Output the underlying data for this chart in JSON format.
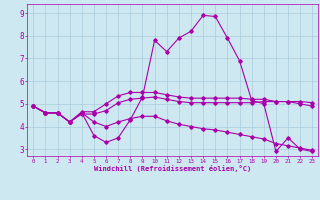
{
  "xlabel": "Windchill (Refroidissement éolien,°C)",
  "background_color": "#cde8f0",
  "grid_color": "#aaccdd",
  "line_color": "#aa00aa",
  "xlim": [
    -0.5,
    23.5
  ],
  "ylim": [
    2.7,
    9.4
  ],
  "yticks": [
    3,
    4,
    5,
    6,
    7,
    8,
    9
  ],
  "xticks": [
    0,
    1,
    2,
    3,
    4,
    5,
    6,
    7,
    8,
    9,
    10,
    11,
    12,
    13,
    14,
    15,
    16,
    17,
    18,
    19,
    20,
    21,
    22,
    23
  ],
  "lines": [
    {
      "x": [
        0,
        1,
        2,
        3,
        4,
        5,
        6,
        7,
        8,
        9,
        10,
        11,
        12,
        13,
        14,
        15,
        16,
        17,
        18,
        19,
        20,
        21,
        22,
        23
      ],
      "y": [
        4.9,
        4.6,
        4.6,
        4.2,
        4.6,
        3.6,
        3.3,
        3.5,
        4.3,
        5.3,
        7.8,
        7.3,
        7.9,
        8.2,
        8.9,
        8.85,
        7.9,
        6.9,
        5.15,
        5.0,
        2.9,
        3.5,
        3.0,
        2.9
      ]
    },
    {
      "x": [
        0,
        1,
        2,
        3,
        4,
        5,
        6,
        7,
        8,
        9,
        10,
        11,
        12,
        13,
        14,
        15,
        16,
        17,
        18,
        19,
        20,
        21,
        22,
        23
      ],
      "y": [
        4.9,
        4.6,
        4.6,
        4.2,
        4.55,
        4.55,
        4.7,
        5.05,
        5.2,
        5.25,
        5.3,
        5.2,
        5.1,
        5.05,
        5.05,
        5.05,
        5.05,
        5.05,
        5.05,
        5.1,
        5.1,
        5.1,
        5.1,
        5.05
      ]
    },
    {
      "x": [
        0,
        1,
        2,
        3,
        4,
        5,
        6,
        7,
        8,
        9,
        10,
        11,
        12,
        13,
        14,
        15,
        16,
        17,
        18,
        19,
        20,
        21,
        22,
        23
      ],
      "y": [
        4.9,
        4.6,
        4.6,
        4.2,
        4.65,
        4.65,
        5.0,
        5.35,
        5.5,
        5.5,
        5.5,
        5.4,
        5.3,
        5.25,
        5.25,
        5.25,
        5.25,
        5.25,
        5.2,
        5.2,
        5.1,
        5.1,
        5.0,
        4.9
      ]
    },
    {
      "x": [
        0,
        1,
        2,
        3,
        4,
        5,
        6,
        7,
        8,
        9,
        10,
        11,
        12,
        13,
        14,
        15,
        16,
        17,
        18,
        19,
        20,
        21,
        22,
        23
      ],
      "y": [
        4.9,
        4.6,
        4.6,
        4.2,
        4.6,
        4.2,
        4.0,
        4.2,
        4.35,
        4.45,
        4.45,
        4.25,
        4.1,
        4.0,
        3.9,
        3.85,
        3.75,
        3.65,
        3.55,
        3.45,
        3.25,
        3.15,
        3.05,
        2.95
      ]
    }
  ]
}
